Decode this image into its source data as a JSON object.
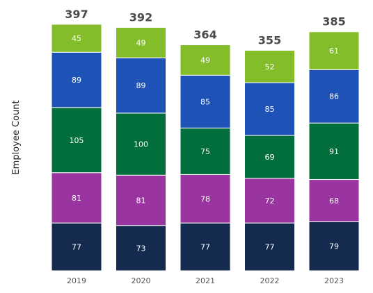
{
  "chart_data": {
    "type": "bar",
    "stacked": true,
    "ylabel": "Employee Count",
    "xlabel": "",
    "categories": [
      "2019",
      "2020",
      "2021",
      "2022",
      "2023"
    ],
    "series": [
      {
        "values": [
          77,
          73,
          77,
          77,
          79
        ],
        "color": "#142a4e"
      },
      {
        "values": [
          81,
          81,
          78,
          72,
          68
        ],
        "color": "#9a34a0"
      },
      {
        "values": [
          105,
          100,
          75,
          69,
          91
        ],
        "color": "#026e3b"
      },
      {
        "values": [
          89,
          89,
          85,
          85,
          86
        ],
        "color": "#1f52b7"
      },
      {
        "values": [
          45,
          49,
          49,
          52,
          61
        ],
        "color": "#84bd2a"
      }
    ],
    "totals": [
      "397",
      "392",
      "364",
      "355",
      "385"
    ],
    "ylim": [
      0,
      397
    ],
    "grid": false,
    "legend": "none"
  }
}
